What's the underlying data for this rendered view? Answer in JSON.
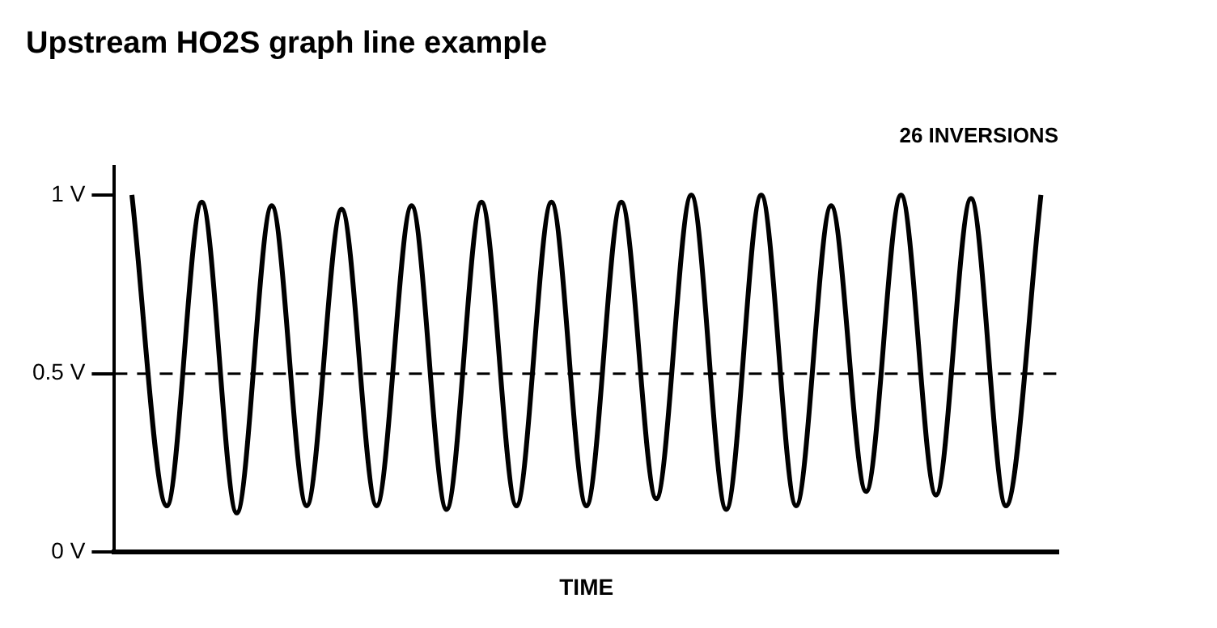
{
  "chart_data": {
    "type": "line",
    "title": "Upstream HO2S graph line example",
    "xlabel": "TIME",
    "annotations": [
      "26 INVERSIONS"
    ],
    "categories": [
      null,
      null,
      null,
      null,
      null,
      null,
      null,
      null,
      null,
      null,
      null,
      null,
      null,
      null,
      null,
      null,
      null,
      null,
      null,
      null,
      null,
      null,
      null,
      null,
      null,
      null,
      null
    ],
    "series": [
      {
        "color": "#000000",
        "values": [
          1.0,
          0.13,
          0.98,
          0.11,
          0.97,
          0.13,
          0.96,
          0.13,
          0.97,
          0.12,
          0.98,
          0.13,
          0.98,
          0.13,
          0.98,
          0.15,
          1.0,
          0.12,
          1.0,
          0.13,
          0.97,
          0.17,
          1.0,
          0.16,
          0.99,
          0.13,
          1.0
        ]
      }
    ],
    "ylim": [
      0,
      1.08
    ],
    "yticks": [
      {
        "value": 0,
        "label": "0 V"
      },
      {
        "value": 0.5,
        "label": "0.5 V"
      },
      {
        "value": 1,
        "label": "1 V"
      }
    ],
    "ref_lines": [
      {
        "axis": "y",
        "value": 0.5,
        "color": "#000000",
        "line_style": "dashed"
      }
    ],
    "tick_labels": "y",
    "grid": false,
    "legend": false,
    "marker": "none",
    "line_style": "solid"
  }
}
